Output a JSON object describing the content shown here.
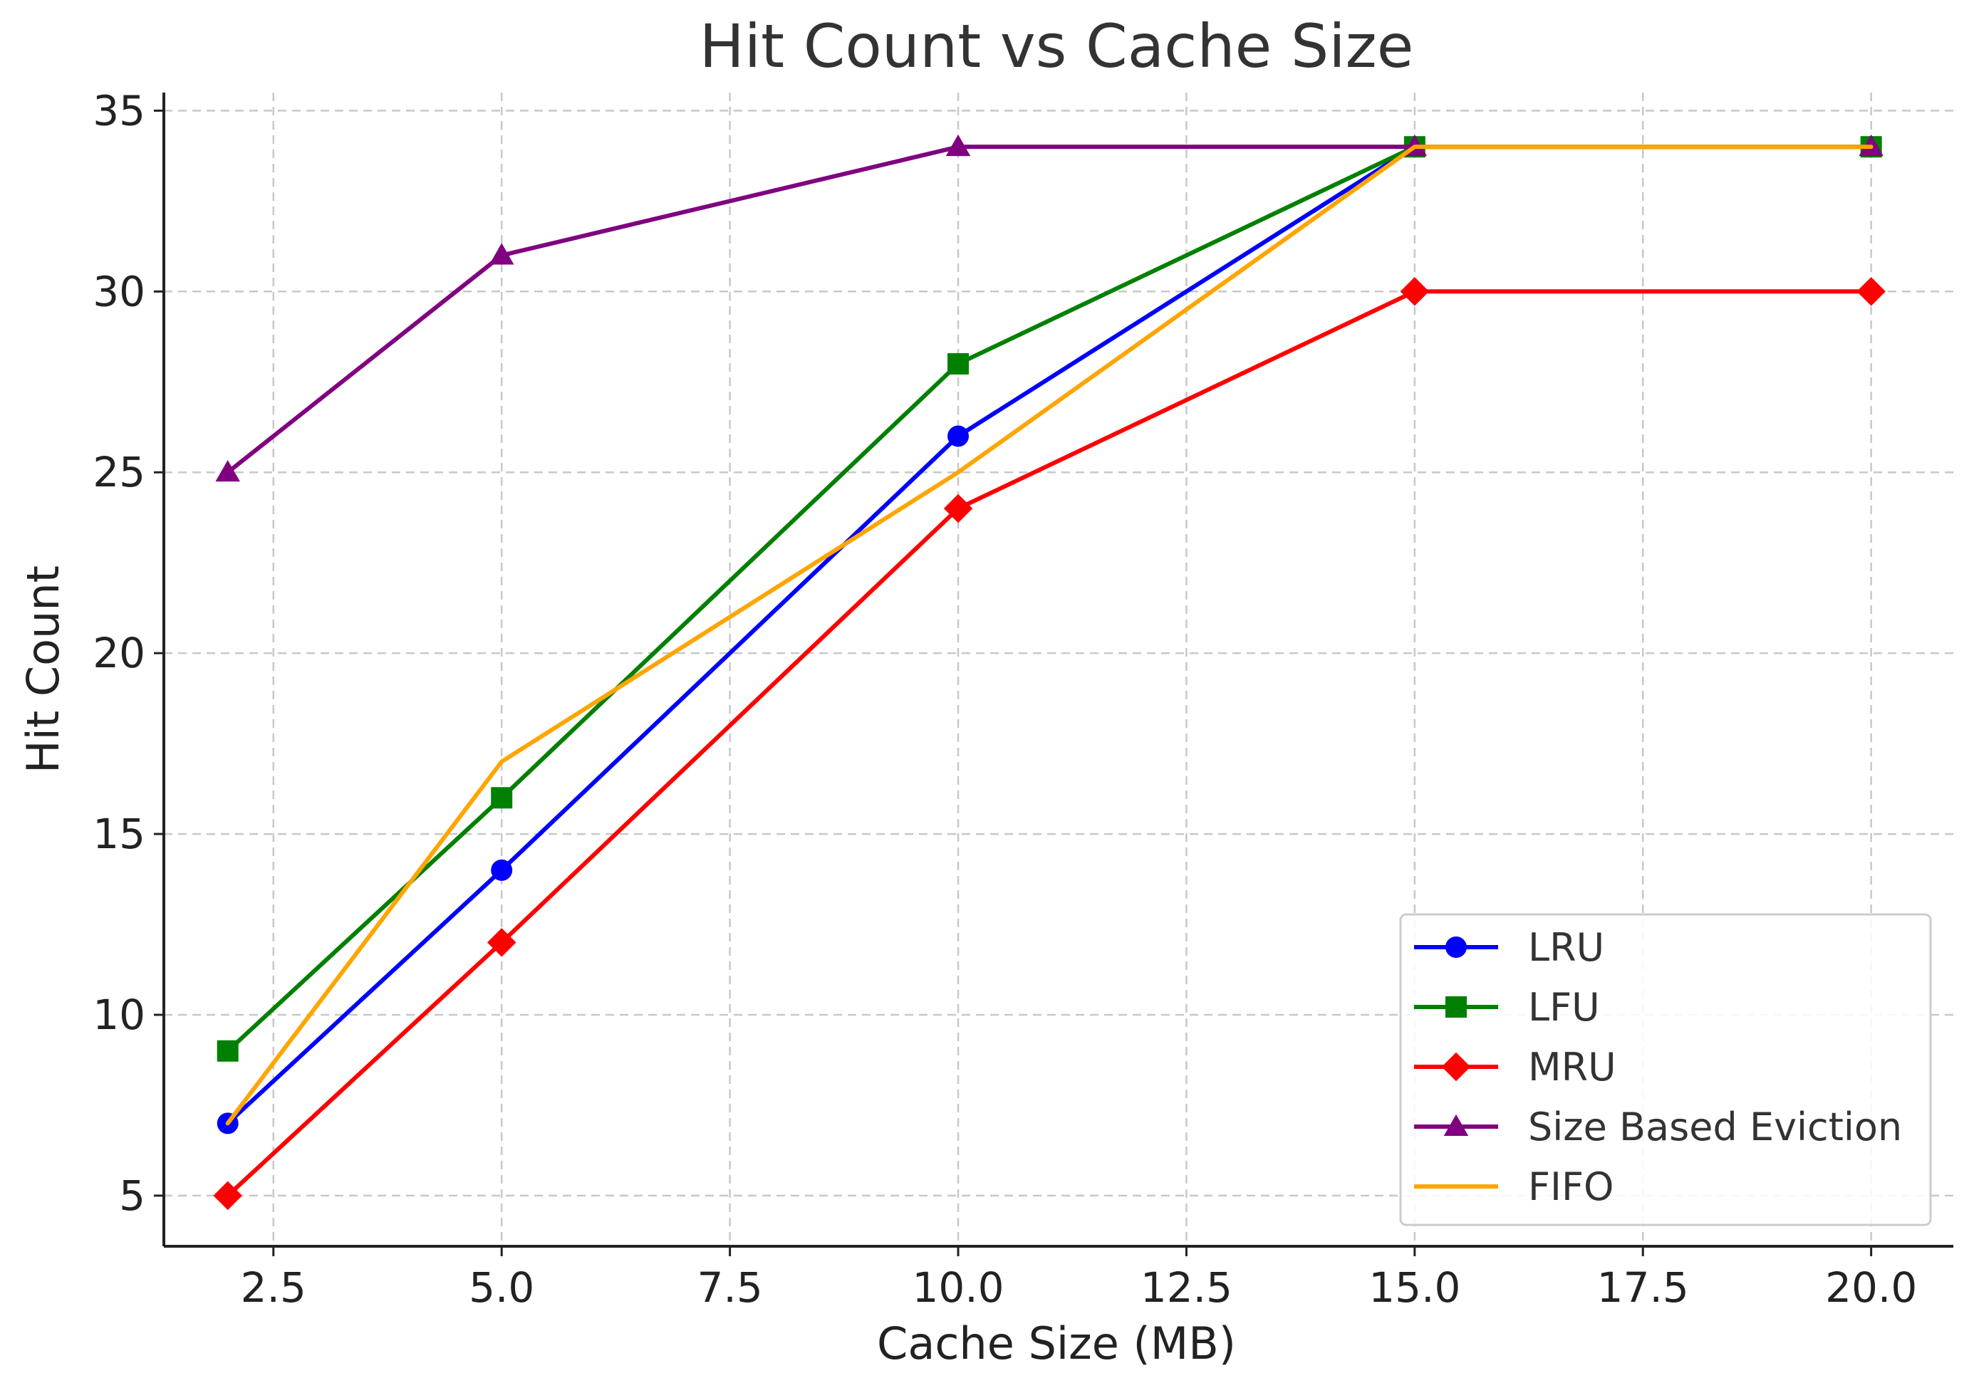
{
  "chart_data": {
    "type": "line",
    "title": "Hit Count vs Cache Size",
    "xlabel": "Cache Size (MB)",
    "ylabel": "Hit Count",
    "xlim": [
      1.3,
      20.9
    ],
    "ylim": [
      3.6,
      35.5
    ],
    "xticks": [
      "2.5",
      "5.0",
      "7.5",
      "10.0",
      "12.5",
      "15.0",
      "17.5",
      "20.0"
    ],
    "xtick_values": [
      2.5,
      5.0,
      7.5,
      10.0,
      12.5,
      15.0,
      17.5,
      20.0
    ],
    "yticks": [
      "5",
      "10",
      "15",
      "20",
      "25",
      "30",
      "35"
    ],
    "ytick_values": [
      5,
      10,
      15,
      20,
      25,
      30,
      35
    ],
    "grid": true,
    "legend_position": "lower-right",
    "x": [
      2,
      5,
      10,
      15,
      20
    ],
    "series": [
      {
        "name": "LRU",
        "color": "#0000ff",
        "marker": "circle",
        "values": [
          7,
          14,
          26,
          34,
          34
        ]
      },
      {
        "name": "LFU",
        "color": "#008000",
        "marker": "square",
        "values": [
          9,
          16,
          28,
          34,
          34
        ]
      },
      {
        "name": "MRU",
        "color": "#ff0000",
        "marker": "diamond",
        "values": [
          5,
          12,
          24,
          30,
          30
        ]
      },
      {
        "name": "Size Based Eviction",
        "color": "#800080",
        "marker": "triangle",
        "values": [
          25,
          31,
          34,
          34,
          34
        ]
      },
      {
        "name": "FIFO",
        "color": "#ffa500",
        "marker": "none",
        "values": [
          7,
          17,
          25,
          34,
          34
        ]
      }
    ]
  }
}
